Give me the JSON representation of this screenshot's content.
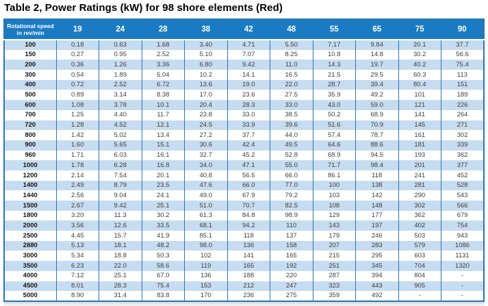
{
  "title": "Table 2, Power Ratings (kW) for 98 shore elements (Red)",
  "colors": {
    "header_bg": "#1b7bc2",
    "stripe_bg": "#c6dcf0",
    "grid_border": "#2c72b0",
    "data_text": "#3c3c3c"
  },
  "table": {
    "corner_header": {
      "line1": "Rotational speed",
      "line2": "in rev/min"
    },
    "columns": [
      "19",
      "24",
      "28",
      "38",
      "42",
      "48",
      "55",
      "65",
      "75",
      "90"
    ],
    "rows": [
      {
        "speed": "100",
        "values": [
          "0.18",
          "0.63",
          "1.68",
          "3.40",
          "4.71",
          "5.50",
          "7.17",
          "9.84",
          "20.1",
          "37.7"
        ]
      },
      {
        "speed": "150",
        "values": [
          "0.27",
          "0.95",
          "2.52",
          "5.10",
          "7.07",
          "8.25",
          "10.8",
          "14.8",
          "30.2",
          "56.6"
        ]
      },
      {
        "speed": "200",
        "values": [
          "0.36",
          "1.26",
          "3.36",
          "6.80",
          "9.42",
          "11.0",
          "14.3",
          "19.7",
          "40.2",
          "75.4"
        ]
      },
      {
        "speed": "300",
        "values": [
          "0.54",
          "1.89",
          "5.04",
          "10.2",
          "14.1",
          "16.5",
          "21.5",
          "29.5",
          "60.3",
          "113"
        ]
      },
      {
        "speed": "400",
        "values": [
          "0.72",
          "2.52",
          "6.72",
          "13.6",
          "19.0",
          "22.0",
          "28.7",
          "39.4",
          "80.4",
          "151"
        ]
      },
      {
        "speed": "500",
        "values": [
          "0.89",
          "3.14",
          "8.38",
          "17.0",
          "23.6",
          "27.5",
          "35.9",
          "49.2",
          "101",
          "189"
        ]
      },
      {
        "speed": "600",
        "values": [
          "1.08",
          "3.78",
          "10.1",
          "20.4",
          "28.3",
          "33.0",
          "43.0",
          "59.0",
          "121",
          "226"
        ]
      },
      {
        "speed": "700",
        "values": [
          "1.25",
          "4.40",
          "11.7",
          "23.8",
          "33.0",
          "38.5",
          "50.2",
          "68.9",
          "141",
          "264"
        ]
      },
      {
        "speed": "720",
        "values": [
          "1.28",
          "4.52",
          "12.1",
          "24.5",
          "33.9",
          "39.6",
          "51.6",
          "70.9",
          "145",
          "271"
        ]
      },
      {
        "speed": "800",
        "values": [
          "1.42",
          "5.02",
          "13.4",
          "27.2",
          "37.7",
          "44.0",
          "57.4",
          "78.7",
          "161",
          "302"
        ]
      },
      {
        "speed": "900",
        "values": [
          "1.60",
          "5.65",
          "15.1",
          "30.6",
          "42.4",
          "49.5",
          "64.6",
          "88.6",
          "181",
          "339"
        ]
      },
      {
        "speed": "960",
        "values": [
          "1.71",
          "6.03",
          "16.1",
          "32.7",
          "45.2",
          "52.8",
          "68.9",
          "94.5",
          "193",
          "362"
        ]
      },
      {
        "speed": "1000",
        "values": [
          "1.78",
          "6.28",
          "16.8",
          "34.0",
          "47.1",
          "55.0",
          "71.7",
          "98.4",
          "201",
          "377"
        ]
      },
      {
        "speed": "1200",
        "values": [
          "2.14",
          "7.54",
          "20.1",
          "40.8",
          "56.5",
          "66.0",
          "86.1",
          "118",
          "241",
          "452"
        ]
      },
      {
        "speed": "1400",
        "values": [
          "2.49",
          "8.79",
          "23.5",
          "47.6",
          "66.0",
          "77.0",
          "100",
          "138",
          "281",
          "528"
        ]
      },
      {
        "speed": "1440",
        "values": [
          "2.56",
          "9.04",
          "24.1",
          "49.0",
          "67.9",
          "79.2",
          "103",
          "142",
          "290",
          "543"
        ]
      },
      {
        "speed": "1500",
        "values": [
          "2.67",
          "9.42",
          "25.1",
          "51.0",
          "70.7",
          "82.5",
          "108",
          "148",
          "302",
          "566"
        ]
      },
      {
        "speed": "1800",
        "values": [
          "3.20",
          "11.3",
          "30.2",
          "61.3",
          "84.8",
          "98.9",
          "129",
          "177",
          "362",
          "679"
        ]
      },
      {
        "speed": "2000",
        "values": [
          "3.56",
          "12.6",
          "33.5",
          "68.1",
          "94.2",
          "110",
          "143",
          "197",
          "402",
          "754"
        ]
      },
      {
        "speed": "2500",
        "values": [
          "4.45",
          "15.7",
          "41.9",
          "85.1",
          "118",
          "137",
          "179",
          "246",
          "503",
          "943"
        ]
      },
      {
        "speed": "2880",
        "values": [
          "5.13",
          "18.1",
          "48.2",
          "98.0",
          "136",
          "158",
          "207",
          "283",
          "579",
          "1086"
        ]
      },
      {
        "speed": "3000",
        "values": [
          "5.34",
          "18.8",
          "50.3",
          "102",
          "141",
          "165",
          "215",
          "295",
          "603",
          "1131"
        ]
      },
      {
        "speed": "3500",
        "values": [
          "6.23",
          "22.0",
          "58.6",
          "119",
          "165",
          "192",
          "251",
          "345",
          "704",
          "1320"
        ]
      },
      {
        "speed": "4000",
        "values": [
          "7.12",
          "25.1",
          "67.0",
          "136",
          "188",
          "220",
          "287",
          "394",
          "804",
          "-"
        ]
      },
      {
        "speed": "4500",
        "values": [
          "8.01",
          "28.3",
          "75.4",
          "153",
          "212",
          "247",
          "323",
          "443",
          "905",
          "-"
        ]
      },
      {
        "speed": "5000",
        "values": [
          "8.90",
          "31.4",
          "83.8",
          "170",
          "236",
          "275",
          "359",
          "492",
          "-",
          "-"
        ]
      }
    ]
  }
}
